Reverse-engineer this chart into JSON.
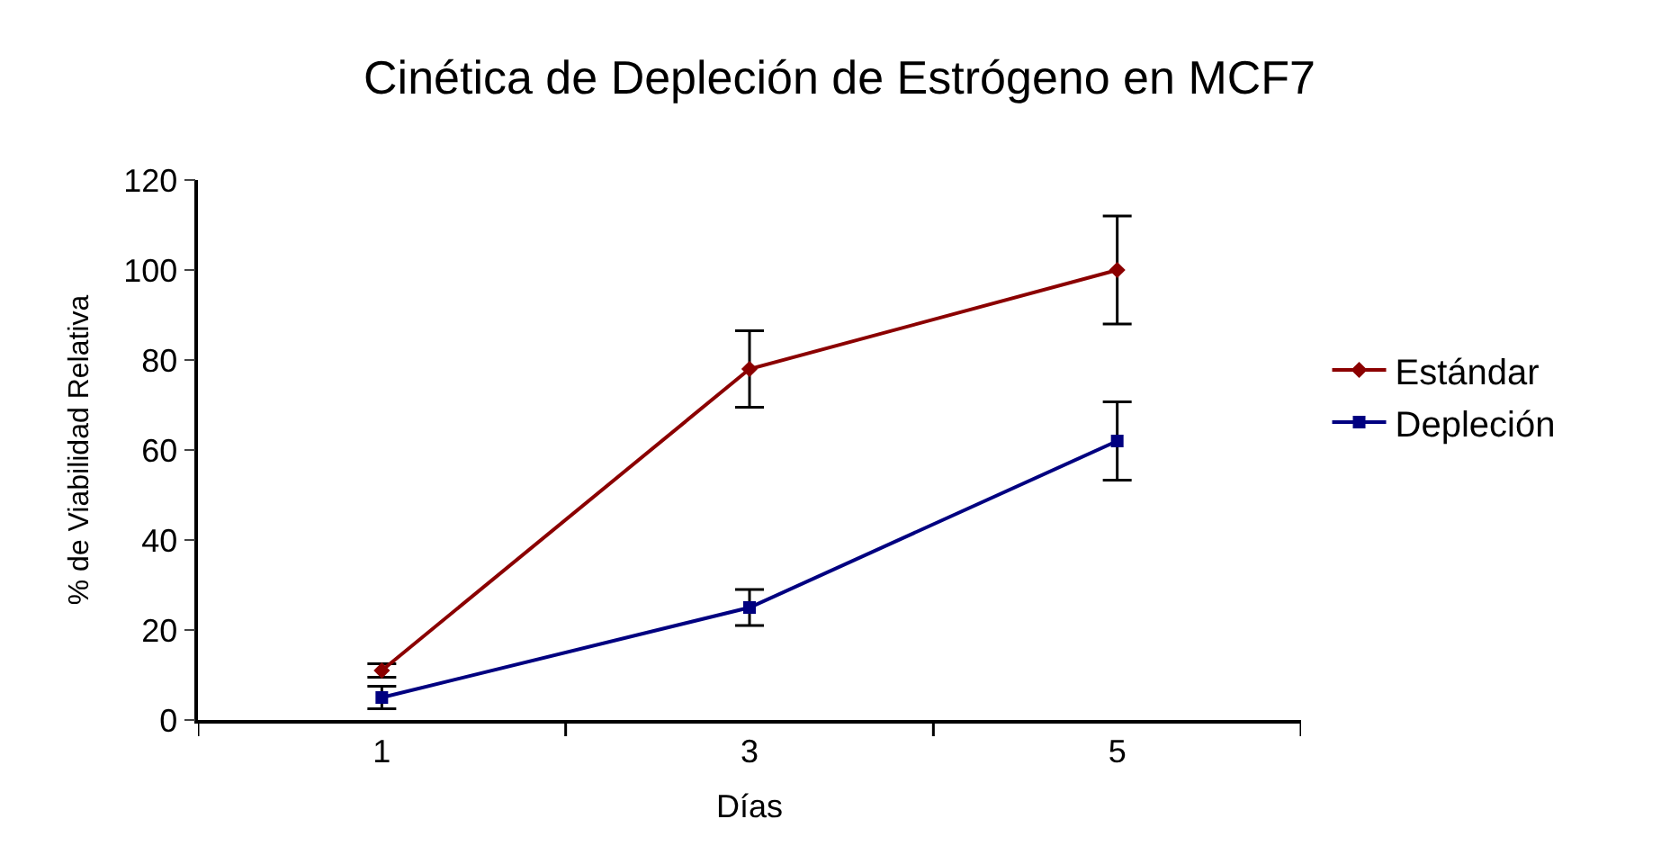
{
  "chart_data": {
    "type": "line",
    "title": "Cinética de Depleción de Estrógeno en MCF7",
    "xlabel": "Días",
    "ylabel": "% de Viabilidad Relativa",
    "categories": [
      "1",
      "3",
      "5"
    ],
    "series": [
      {
        "name": "Estándar",
        "color": "#8b0000",
        "marker": "diamond",
        "values": [
          11,
          78,
          100
        ],
        "errors": [
          1.5,
          8.5,
          12
        ]
      },
      {
        "name": "Depleción",
        "color": "#000080",
        "marker": "square",
        "values": [
          5,
          25,
          62
        ],
        "errors": [
          2.5,
          4,
          8.7
        ]
      }
    ],
    "ylim": [
      0,
      120
    ],
    "yticks": [
      0,
      20,
      40,
      60,
      80,
      100,
      120
    ],
    "grid": false,
    "legend": "right",
    "line_style": "solid"
  }
}
